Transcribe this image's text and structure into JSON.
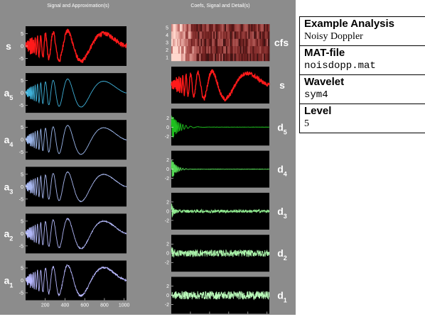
{
  "info": {
    "title": "Example Analysis",
    "subtitle": "Noisy Doppler",
    "matfile_label": "MAT-file",
    "matfile_value": "noisdopp.mat",
    "wavelet_label": "Wavelet",
    "wavelet_value": "sym4",
    "level_label": "Level",
    "level_value": "5"
  },
  "colors": {
    "figure_background": "#8c8c8c",
    "axes_background": "#000000",
    "signal": "#ff1a1a",
    "approximations": [
      "#3fb0d8",
      "#9bb6ea",
      "#a9b8f0",
      "#b0b6f6",
      "#b8b8ff"
    ],
    "details": [
      "#1fbf1f",
      "#55d855",
      "#8ee88e",
      "#a8f0a8",
      "#b8f8b8"
    ]
  },
  "chart_data": [
    {
      "type": "line",
      "title": "Signal and Approximation(s)",
      "xlim": [
        0,
        1024
      ],
      "xticks": [
        200,
        400,
        600,
        800,
        1000
      ],
      "series": [
        {
          "name": "s",
          "label": "s",
          "ylim": [
            -8,
            8
          ],
          "yticks": [
            5,
            0,
            -5
          ],
          "amplitude": 6.5,
          "noise": 0.9
        },
        {
          "name": "a5",
          "label": "a",
          "sub": "5",
          "ylim": [
            -8,
            8
          ],
          "yticks": [
            5,
            0,
            -5
          ],
          "amplitude": 6.0,
          "noise": 0.05
        },
        {
          "name": "a4",
          "label": "a",
          "sub": "4",
          "ylim": [
            -8,
            8
          ],
          "yticks": [
            5,
            0,
            -5
          ],
          "amplitude": 6.2,
          "noise": 0.08
        },
        {
          "name": "a3",
          "label": "a",
          "sub": "3",
          "ylim": [
            -8,
            8
          ],
          "yticks": [
            5,
            0,
            -5
          ],
          "amplitude": 6.3,
          "noise": 0.12
        },
        {
          "name": "a2",
          "label": "a",
          "sub": "2",
          "ylim": [
            -8,
            8
          ],
          "yticks": [
            5,
            0,
            -5
          ],
          "amplitude": 6.4,
          "noise": 0.22
        },
        {
          "name": "a1",
          "label": "a",
          "sub": "1",
          "ylim": [
            -8,
            8
          ],
          "yticks": [
            5,
            0,
            -5
          ],
          "amplitude": 6.5,
          "noise": 0.4
        }
      ]
    },
    {
      "type": "heatmap",
      "title": "Coefs, Signal and Detail(s)",
      "label": "cfs",
      "levels": [
        5,
        4,
        3,
        2,
        1
      ],
      "xlim": [
        0,
        1024
      ]
    },
    {
      "type": "line",
      "xlim": [
        0,
        1024
      ],
      "xticks": [
        200,
        400,
        600,
        800,
        1000
      ],
      "series": [
        {
          "name": "s",
          "label": "s",
          "ylim": [
            -8,
            8
          ],
          "yticks": [],
          "amplitude": 6.5,
          "noise": 0.9
        },
        {
          "name": "d5",
          "label": "d",
          "sub": "5",
          "ylim": [
            -4,
            4
          ],
          "yticks": [
            2,
            0,
            -2
          ],
          "amplitude": 3.0,
          "noise": 0.03
        },
        {
          "name": "d4",
          "label": "d",
          "sub": "4",
          "ylim": [
            -4,
            4
          ],
          "yticks": [
            2,
            0,
            -2
          ],
          "amplitude": 2.5,
          "noise": 0.04
        },
        {
          "name": "d3",
          "label": "d",
          "sub": "3",
          "ylim": [
            -4,
            4
          ],
          "yticks": [
            2,
            0,
            -2
          ],
          "amplitude": 2.0,
          "noise": 0.35
        },
        {
          "name": "d2",
          "label": "d",
          "sub": "2",
          "ylim": [
            -4,
            4
          ],
          "yticks": [
            2,
            0,
            -2
          ],
          "amplitude": 1.5,
          "noise": 0.75
        },
        {
          "name": "d1",
          "label": "d",
          "sub": "1",
          "ylim": [
            -4,
            4
          ],
          "yticks": [
            2,
            0,
            -2
          ],
          "amplitude": 0.8,
          "noise": 0.9
        }
      ]
    }
  ]
}
